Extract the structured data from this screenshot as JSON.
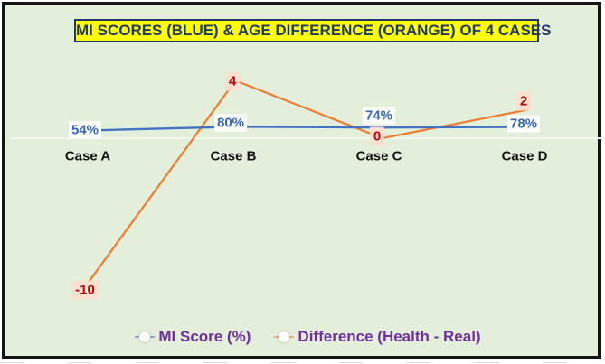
{
  "title": {
    "text": "MI SCORES (BLUE) & AGE DIFFERENCE (ORANGE) OF 4 CASES"
  },
  "chart_data": {
    "type": "line",
    "title": "MI SCORES (BLUE) & AGE DIFFERENCE (ORANGE) OF 4 CASES",
    "categories": [
      "Case A",
      "Case B",
      "Case C",
      "Case D"
    ],
    "series": [
      {
        "name": "MI Score (%)",
        "values": [
          54,
          80,
          74,
          78
        ],
        "labels": [
          "54%",
          "80%",
          "74%",
          "78%"
        ],
        "color": "#4472c4",
        "label_text_color": "#3565bd",
        "label_bg": "#ffffff",
        "plotted_as": "fraction of 1 on shared axis"
      },
      {
        "name": "Difference (Health - Real)",
        "values": [
          -10,
          4,
          0,
          2
        ],
        "labels": [
          "-10",
          "4",
          "0",
          "2"
        ],
        "color": "#ed7d31",
        "label_text_color": "#c00000",
        "label_bg": "#fbded1"
      }
    ],
    "xlabel": "",
    "ylabel": "",
    "ylim": [
      -12,
      6
    ],
    "grid": "single faint horizontal gridline at 0",
    "legend_position": "bottom"
  },
  "legend": {
    "items": [
      {
        "label": "MI Score (%)"
      },
      {
        "label": "Difference (Health - Real)"
      }
    ],
    "text_color": "#7030a0"
  },
  "colors": {
    "background": "#e3efda",
    "frame_border": "#141414",
    "title_bg": "#ffff00",
    "title_text": "#1f3864",
    "title_border": "#1f3864",
    "mi_line": "#4472c4",
    "difference_line": "#ed7d31",
    "difference_label_text": "#c00000",
    "legend_text": "#7030a0",
    "category_text": "#121212",
    "gridline": "#f2f7ee"
  }
}
